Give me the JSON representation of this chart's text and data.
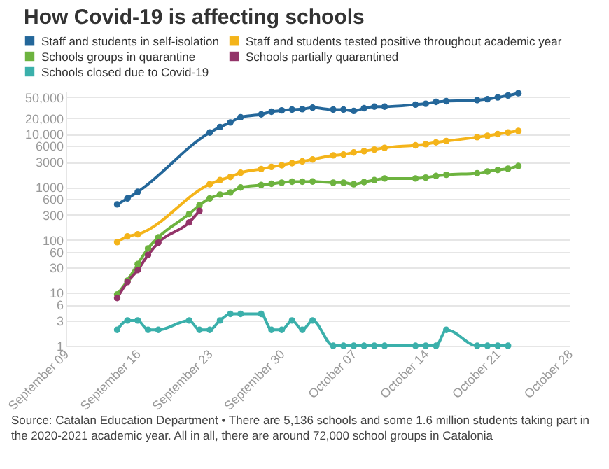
{
  "chart_data": {
    "type": "line",
    "title": "How Covid-19 is affecting schools",
    "annotations": [
      "Source: Catalan Education Department • There are 5,136 schools and some 1.6 million students taking part in the 2020-2021 academic year. All in all, there are around 72,000 school groups in Catalonia"
    ],
    "log": "y",
    "grid": "y",
    "legend": "top left",
    "marker": "circle",
    "line_style": "solid",
    "xlim": [
      "--09-09",
      "--10-28"
    ],
    "xticks": [
      {
        "value": "--09-09",
        "label": "September 09"
      },
      {
        "value": "--09-16",
        "label": "September 16"
      },
      {
        "value": "--09-23",
        "label": "September 23"
      },
      {
        "value": "--09-30",
        "label": "September 30"
      },
      {
        "value": "--10-07",
        "label": "October 07"
      },
      {
        "value": "--10-14",
        "label": "October 14"
      },
      {
        "value": "--10-21",
        "label": "October 21"
      },
      {
        "value": "--10-28",
        "label": "October 28"
      }
    ],
    "ylim": [
      1,
      65000
    ],
    "yticks": [
      {
        "value": 1,
        "label": "1"
      },
      {
        "value": 3,
        "label": "3"
      },
      {
        "value": 6,
        "label": "6"
      },
      {
        "value": 10,
        "label": "10"
      },
      {
        "value": 30,
        "label": "30"
      },
      {
        "value": 60,
        "label": "60"
      },
      {
        "value": 100,
        "label": "100"
      },
      {
        "value": 300,
        "label": "300"
      },
      {
        "value": 600,
        "label": "600"
      },
      {
        "value": 1000,
        "label": "1000"
      },
      {
        "value": 3000,
        "label": "3000"
      },
      {
        "value": 6000,
        "label": "6000"
      },
      {
        "value": 10000,
        "label": "10,000"
      },
      {
        "value": 20000,
        "label": "20,000"
      },
      {
        "value": 50000,
        "label": "50,000"
      }
    ],
    "series": [
      {
        "name": "Staff and students in self-isolation",
        "color": "#24679a",
        "x": [
          "--09-14",
          "--09-15",
          "--09-16",
          "--09-23",
          "--09-24",
          "--09-25",
          "--09-26",
          "--09-28",
          "--09-29",
          "--09-30",
          "--10-01",
          "--10-02",
          "--10-03",
          "--10-05",
          "--10-06",
          "--10-07",
          "--10-08",
          "--10-09",
          "--10-10",
          "--10-13",
          "--10-14",
          "--10-15",
          "--10-16",
          "--10-19",
          "--10-20",
          "--10-21",
          "--10-22",
          "--10-23"
        ],
        "values": [
          470,
          610,
          810,
          10700,
          13600,
          16600,
          20800,
          23600,
          26500,
          28000,
          29000,
          29600,
          31500,
          29000,
          29000,
          27400,
          30800,
          33000,
          33000,
          36000,
          37500,
          40500,
          41800,
          43700,
          45700,
          49300,
          53500,
          59000
        ]
      },
      {
        "name": "Staff and students tested positive throughout academic year",
        "color": "#f4b41a",
        "x": [
          "--09-14",
          "--09-15",
          "--09-16",
          "--09-23",
          "--09-24",
          "--09-25",
          "--09-26",
          "--09-28",
          "--09-29",
          "--09-30",
          "--10-01",
          "--10-02",
          "--10-03",
          "--10-05",
          "--10-06",
          "--10-07",
          "--10-08",
          "--10-09",
          "--10-10",
          "--10-13",
          "--10-14",
          "--10-15",
          "--10-16",
          "--10-19",
          "--10-20",
          "--10-21",
          "--10-22",
          "--10-23"
        ],
        "values": [
          91,
          117,
          128,
          1130,
          1350,
          1550,
          1860,
          2190,
          2400,
          2580,
          2820,
          3050,
          3320,
          3960,
          4100,
          4500,
          4750,
          5100,
          5500,
          6150,
          6450,
          7000,
          7400,
          8750,
          9300,
          10000,
          10700,
          11500
        ]
      },
      {
        "name": "Schools groups in quarantine",
        "color": "#6db33f",
        "x": [
          "--09-14",
          "--09-15",
          "--09-16",
          "--09-17",
          "--09-18",
          "--09-21",
          "--09-22",
          "--09-23",
          "--09-24",
          "--09-25",
          "--09-26",
          "--09-28",
          "--09-29",
          "--09-30",
          "--10-01",
          "--10-02",
          "--10-03",
          "--10-05",
          "--10-06",
          "--10-07",
          "--10-08",
          "--10-09",
          "--10-10",
          "--10-13",
          "--10-14",
          "--10-15",
          "--10-16",
          "--10-19",
          "--10-20",
          "--10-21",
          "--10-22",
          "--10-23"
        ],
        "values": [
          9.3,
          17,
          35,
          69,
          112,
          310,
          455,
          610,
          720,
          790,
          980,
          1090,
          1150,
          1210,
          1260,
          1260,
          1270,
          1210,
          1210,
          1130,
          1240,
          1350,
          1450,
          1450,
          1510,
          1620,
          1700,
          1820,
          1960,
          2100,
          2220,
          2500
        ]
      },
      {
        "name": "Schools partially quarantined",
        "color": "#933469",
        "x": [
          "--09-14",
          "--09-15",
          "--09-16",
          "--09-17",
          "--09-18",
          "--09-21",
          "--09-22"
        ],
        "values": [
          8,
          16,
          27,
          52,
          89,
          215,
          355
        ]
      },
      {
        "name": "Schools closed due to Covid-19",
        "color": "#3bb0ab",
        "x": [
          "--09-14",
          "--09-15",
          "--09-16",
          "--09-17",
          "--09-18",
          "--09-21",
          "--09-22",
          "--09-23",
          "--09-24",
          "--09-25",
          "--09-26",
          "--09-28",
          "--09-29",
          "--09-30",
          "--10-01",
          "--10-02",
          "--10-03",
          "--10-05",
          "--10-06",
          "--10-07",
          "--10-08",
          "--10-09",
          "--10-10",
          "--10-13",
          "--10-14",
          "--10-15",
          "--10-16",
          "--10-19",
          "--10-20",
          "--10-21",
          "--10-22"
        ],
        "values": [
          2,
          3,
          3,
          2,
          2,
          3,
          2,
          2,
          3,
          4,
          4,
          4,
          2,
          2,
          3,
          2,
          3,
          1,
          1,
          1,
          1,
          1,
          1,
          1,
          1,
          1,
          2,
          1,
          1,
          1,
          1
        ]
      }
    ]
  }
}
